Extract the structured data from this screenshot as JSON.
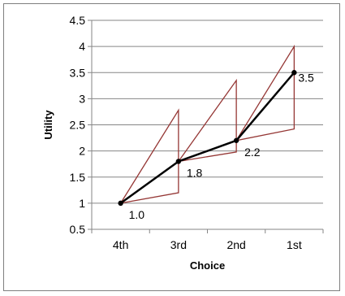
{
  "chart_data": {
    "type": "line",
    "title": "",
    "xlabel": "Choice",
    "ylabel": "Utility",
    "categories": [
      "4th",
      "3rd",
      "2nd",
      "1st"
    ],
    "ylim": [
      0.5,
      4.5
    ],
    "yticks": [
      "0.5",
      "1",
      "1.5",
      "2",
      "2.5",
      "3",
      "3.5",
      "4",
      "4.5"
    ],
    "ytick_values": [
      0.5,
      1,
      1.5,
      2,
      2.5,
      3,
      3.5,
      4,
      4.5
    ],
    "grid": true,
    "legend": "none",
    "series": [
      {
        "values": [
          1.0,
          1.8,
          2.2,
          3.5
        ],
        "labels": [
          "1.0",
          "1.8",
          "2.2",
          "3.5"
        ],
        "color": "#000000"
      }
    ],
    "triangles": [
      {
        "base": 0,
        "base_value": 1.0,
        "next": 1,
        "upper": 2.78,
        "lower": 1.2
      },
      {
        "base": 1,
        "base_value": 1.8,
        "next": 2,
        "upper": 3.35,
        "lower": 1.98
      },
      {
        "base": 2,
        "base_value": 2.2,
        "next": 3,
        "upper": 4.0,
        "lower": 2.42
      }
    ],
    "triangle_color": "#953735",
    "gridline_color": "#868686"
  }
}
